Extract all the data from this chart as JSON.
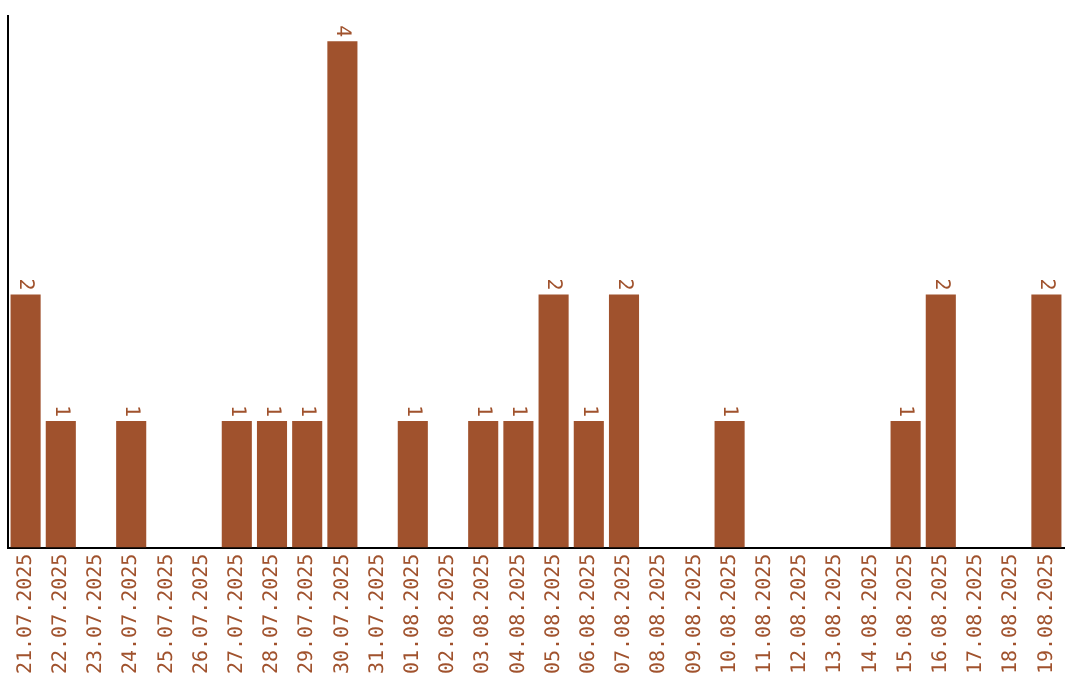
{
  "chart_data": {
    "type": "bar",
    "categories": [
      "21.07.2025",
      "22.07.2025",
      "23.07.2025",
      "24.07.2025",
      "25.07.2025",
      "26.07.2025",
      "27.07.2025",
      "28.07.2025",
      "29.07.2025",
      "30.07.2025",
      "31.07.2025",
      "01.08.2025",
      "02.08.2025",
      "03.08.2025",
      "04.08.2025",
      "05.08.2025",
      "06.08.2025",
      "07.08.2025",
      "08.08.2025",
      "09.08.2025",
      "10.08.2025",
      "11.08.2025",
      "12.08.2025",
      "13.08.2025",
      "14.08.2025",
      "15.08.2025",
      "16.08.2025",
      "17.08.2025",
      "18.08.2025",
      "19.08.2025"
    ],
    "values": [
      2,
      1,
      0,
      1,
      0,
      0,
      1,
      1,
      1,
      4,
      0,
      1,
      0,
      1,
      1,
      2,
      1,
      2,
      0,
      0,
      1,
      0,
      0,
      0,
      0,
      1,
      2,
      0,
      0,
      2
    ],
    "value_labels": [
      "2",
      "1",
      null,
      "1",
      null,
      null,
      "1",
      "1",
      "1",
      "4",
      null,
      "1",
      null,
      "1",
      "1",
      "2",
      "1",
      "2",
      null,
      null,
      "1",
      null,
      null,
      null,
      null,
      "1",
      "2",
      null,
      null,
      "2"
    ],
    "color": "#a0522d",
    "ylim": [
      0,
      4.2
    ],
    "tick_labels": "x",
    "grid": false,
    "legend": false
  }
}
